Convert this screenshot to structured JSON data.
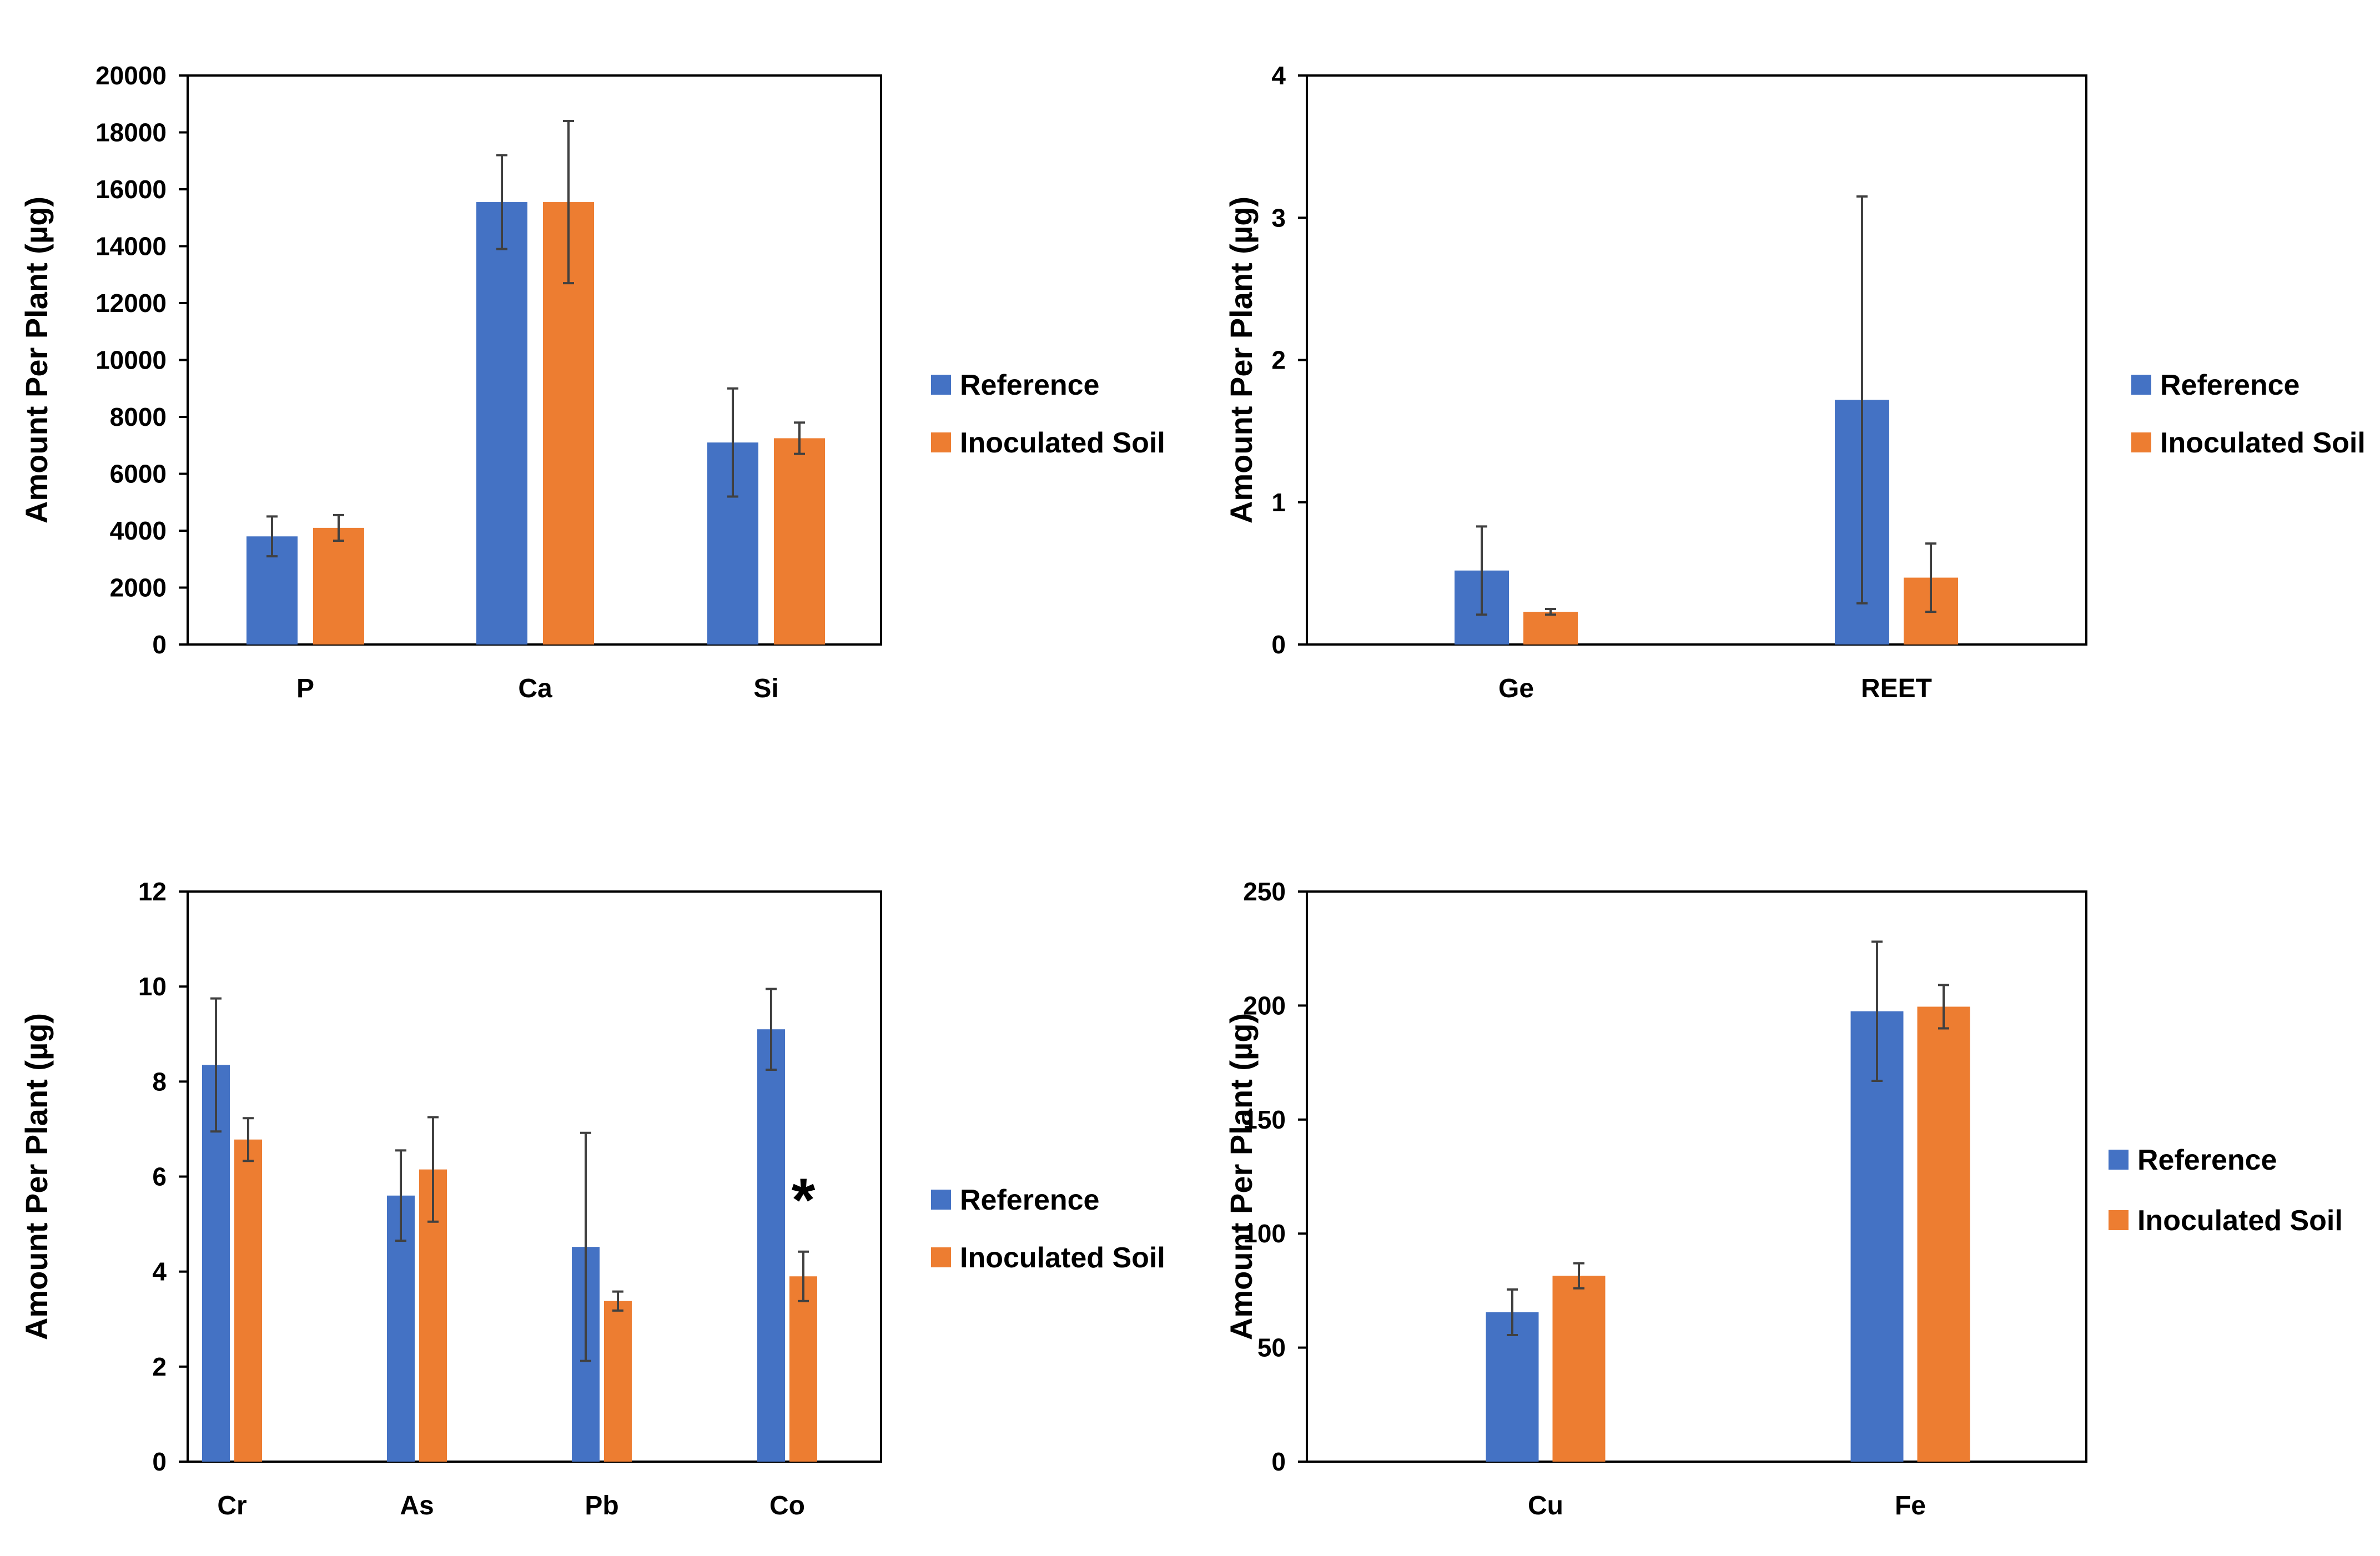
{
  "colors": {
    "reference": "#4472C4",
    "inoculated": "#ED7D31",
    "errorbar": "#404040",
    "axis": "#000000"
  },
  "chart_data": [
    {
      "type": "bar",
      "title": "",
      "xlabel": "",
      "ylabel": "Amount Per Plant (µg)",
      "categories": [
        "P",
        "Ca",
        "Si"
      ],
      "ylim": [
        0,
        20000
      ],
      "yticks": [
        0,
        2000,
        4000,
        6000,
        8000,
        10000,
        12000,
        14000,
        16000,
        18000,
        20000
      ],
      "legend_position": "right",
      "series": [
        {
          "name": "Reference",
          "values": [
            3800,
            15550,
            7100
          ],
          "errors": [
            700,
            1650,
            1900
          ]
        },
        {
          "name": "Inoculated Soil",
          "values": [
            4100,
            15550,
            7250
          ],
          "errors": [
            450,
            2850,
            550
          ]
        }
      ],
      "annotations": []
    },
    {
      "type": "bar",
      "title": "",
      "xlabel": "",
      "ylabel": "Amount Per Plant (µg)",
      "categories": [
        "Ge",
        "REET"
      ],
      "ylim": [
        0,
        4
      ],
      "yticks": [
        0,
        1,
        2,
        3,
        4
      ],
      "legend_position": "right",
      "series": [
        {
          "name": "Reference",
          "values": [
            0.52,
            1.72
          ],
          "errors": [
            0.31,
            1.43
          ]
        },
        {
          "name": "Inoculated Soil",
          "values": [
            0.23,
            0.47
          ],
          "errors": [
            0.02,
            0.24
          ]
        }
      ],
      "annotations": []
    },
    {
      "type": "bar",
      "title": "",
      "xlabel": "",
      "ylabel": "Amount Per Plant (µg)",
      "categories": [
        "Cr",
        "As",
        "Pb",
        "Co"
      ],
      "ylim": [
        0,
        12
      ],
      "yticks": [
        0,
        2,
        4,
        6,
        8,
        10,
        12
      ],
      "legend_position": "right",
      "series": [
        {
          "name": "Reference",
          "values": [
            8.35,
            5.6,
            4.52,
            9.1
          ],
          "errors": [
            1.4,
            0.95,
            2.4,
            0.85
          ]
        },
        {
          "name": "Inoculated Soil",
          "values": [
            6.78,
            6.15,
            3.38,
            3.9
          ],
          "errors": [
            0.45,
            1.1,
            0.2,
            0.52
          ]
        }
      ],
      "annotations": [
        {
          "text": "*",
          "category": "Co",
          "series": "Inoculated Soil"
        }
      ]
    },
    {
      "type": "bar",
      "title": "",
      "xlabel": "",
      "ylabel": "Amount Per Plant (µg)",
      "categories": [
        "Cu",
        "Fe"
      ],
      "ylim": [
        0,
        250
      ],
      "yticks": [
        0,
        50,
        100,
        150,
        200,
        250
      ],
      "legend_position": "right",
      "series": [
        {
          "name": "Reference",
          "values": [
            65.5,
            197.5
          ],
          "errors": [
            10,
            30.5
          ]
        },
        {
          "name": "Inoculated Soil",
          "values": [
            81.5,
            199.5
          ],
          "errors": [
            5.5,
            9.5
          ]
        }
      ],
      "annotations": []
    }
  ]
}
